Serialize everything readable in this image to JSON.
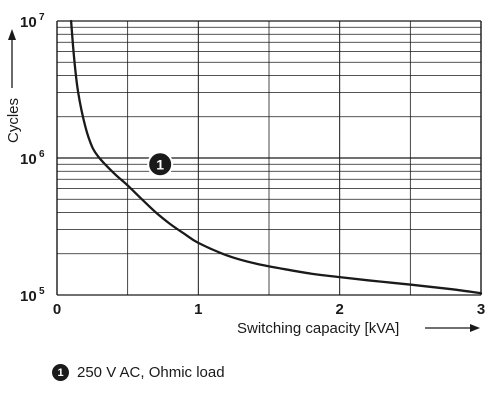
{
  "chart_data": {
    "type": "line",
    "title": "",
    "xlabel": "Switching capacity [kVA]",
    "ylabel": "Cycles",
    "xlim": [
      0,
      3
    ],
    "ylim": [
      100000,
      10000000
    ],
    "yscale": "log",
    "grid": true,
    "x_ticks": [
      {
        "value": 0,
        "label": "0"
      },
      {
        "value": 1,
        "label": "1"
      },
      {
        "value": 2,
        "label": "2"
      },
      {
        "value": 3,
        "label": "3"
      }
    ],
    "y_ticks": [
      {
        "value": 100000,
        "base": "10",
        "exp": "5"
      },
      {
        "value": 1000000,
        "base": "10",
        "exp": "6"
      },
      {
        "value": 10000000,
        "base": "10",
        "exp": "7"
      }
    ],
    "series": [
      {
        "marker": "1",
        "x": [
          0.1,
          0.12,
          0.15,
          0.2,
          0.25,
          0.3,
          0.4,
          0.5,
          0.6,
          0.7,
          0.8,
          0.9,
          1.0,
          1.2,
          1.4,
          1.6,
          1.8,
          2.0,
          2.2,
          2.4,
          2.6,
          2.8,
          3.0
        ],
        "y": [
          10000000,
          5500000,
          3000000,
          1700000,
          1200000,
          1000000,
          780000,
          630000,
          500000,
          400000,
          330000,
          280000,
          240000,
          195000,
          170000,
          155000,
          143000,
          135000,
          128000,
          122000,
          116000,
          110000,
          103000
        ]
      }
    ],
    "annotations": [
      {
        "marker": "1",
        "x": 0.73,
        "y": 900000
      }
    ]
  },
  "legend": {
    "marker": "1",
    "text": "250 V AC, Ohmic load"
  }
}
